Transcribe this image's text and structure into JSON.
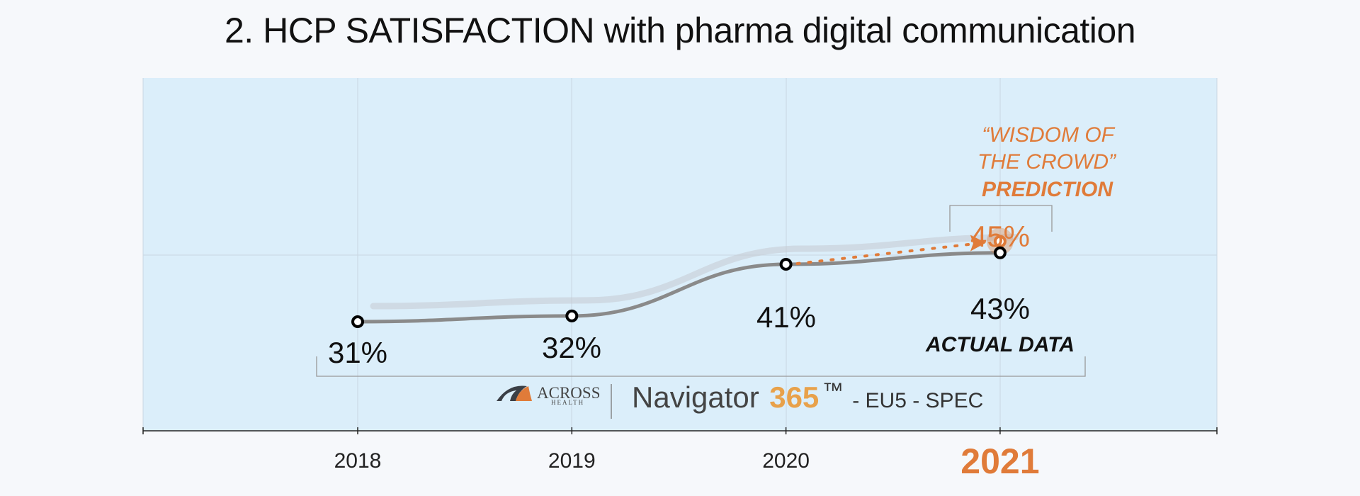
{
  "title": "2. HCP SATISFACTION with pharma digital communication",
  "colors": {
    "plot_bg": "#dbeefa",
    "actual_line": "#8a8a8a",
    "accent": "#e07b39",
    "marker_fill": "#ffffff",
    "marker_stroke": "#000000"
  },
  "chart_data": {
    "type": "line",
    "categories": [
      "2018",
      "2019",
      "2020",
      "2021"
    ],
    "highlight_category": "2021",
    "series": [
      {
        "name": "ACTUAL DATA",
        "values": [
          31,
          32,
          41,
          43
        ],
        "labels": [
          "31%",
          "32%",
          "41%",
          "43%"
        ]
      },
      {
        "values": [
          41,
          45
        ],
        "x": [
          "2020",
          "2021"
        ],
        "labels": [
          "",
          "45%"
        ]
      }
    ],
    "annotations": {
      "prediction_lines": [
        "“WISDOM OF",
        "THE CROWD”"
      ],
      "prediction_bold": "PREDICTION",
      "actual_label": "ACTUAL DATA"
    },
    "grid": true
  },
  "branding": {
    "logo_name": "ACROSS",
    "logo_sub": "HEALTH",
    "product": "Navigator",
    "product_number": "365",
    "trademark": "™",
    "suffix": "- EU5 - SPEC"
  }
}
